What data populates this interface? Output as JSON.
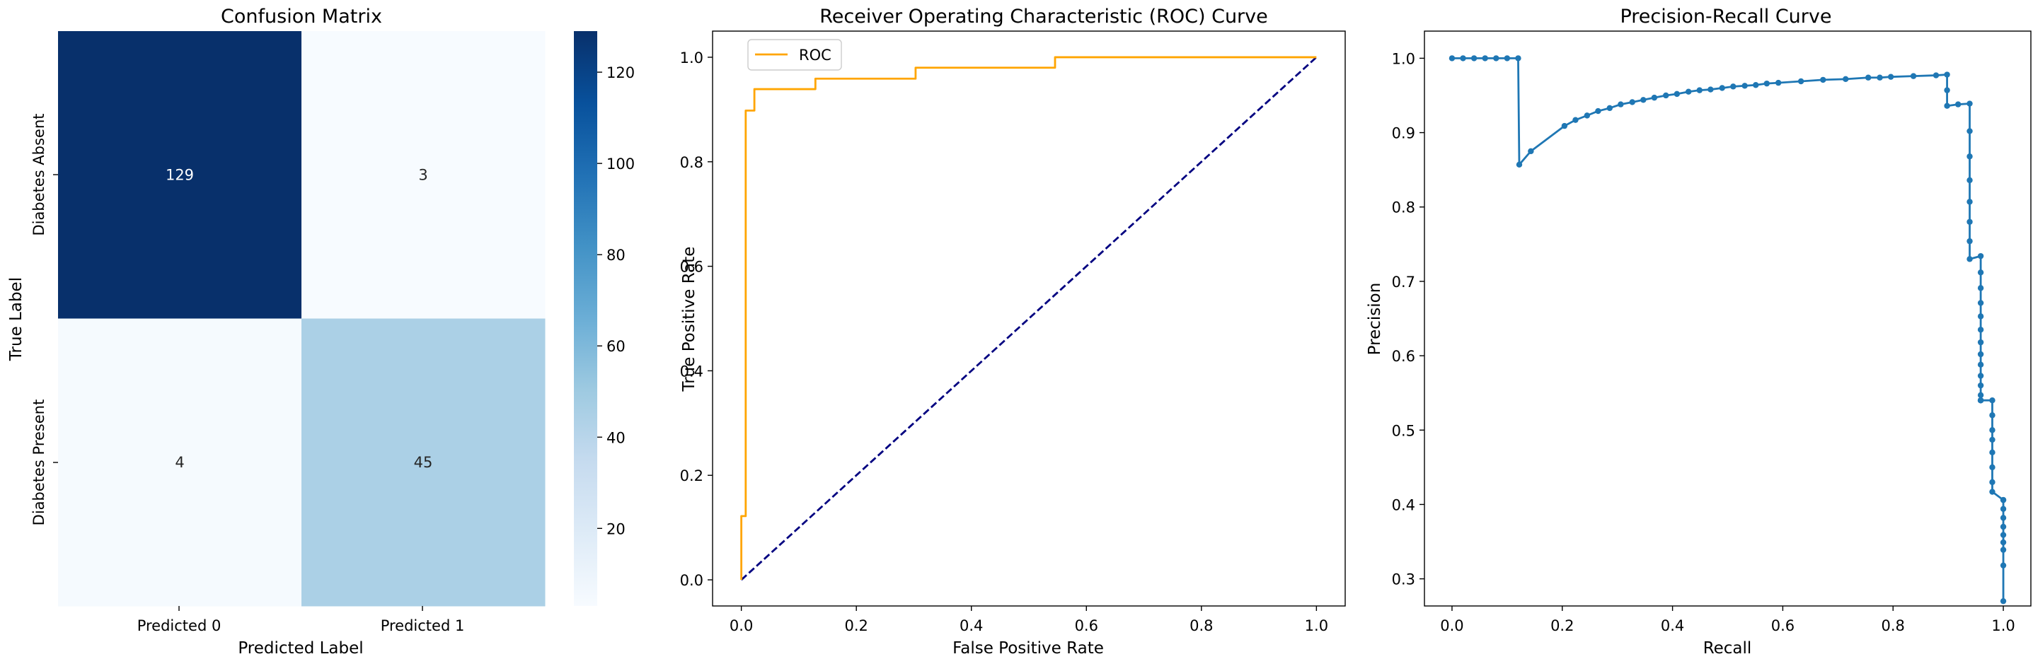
{
  "chart_data": [
    {
      "type": "heatmap",
      "title": "Confusion Matrix",
      "xlabel": "Predicted Label",
      "ylabel": "True Label",
      "x_categories": [
        "Predicted 0",
        "Predicted 1"
      ],
      "y_categories": [
        "Diabetes Absent",
        "Diabetes Present"
      ],
      "values": [
        [
          129,
          3
        ],
        [
          4,
          45
        ]
      ],
      "colormap": "Blues",
      "colorbar": {
        "min": 3,
        "max": 129,
        "ticks": [
          20,
          40,
          60,
          80,
          100,
          120
        ]
      }
    },
    {
      "type": "line",
      "title": "Receiver Operating Characteristic (ROC) Curve",
      "xlabel": "False Positive Rate",
      "ylabel": "True Positive Rate",
      "xlim": [
        -0.05,
        1.05
      ],
      "ylim": [
        -0.05,
        1.05
      ],
      "xticks": [
        "0.0",
        "0.2",
        "0.4",
        "0.6",
        "0.8",
        "1.0"
      ],
      "yticks": [
        "0.0",
        "0.2",
        "0.4",
        "0.6",
        "0.8",
        "1.0"
      ],
      "legend": {
        "position": "upper-left",
        "entries": [
          "ROC"
        ]
      },
      "series": [
        {
          "name": "ROC",
          "color": "#ffa500",
          "x": [
            0.0,
            0.0,
            0.0,
            0.0076,
            0.0076,
            0.0227,
            0.0227,
            0.1288,
            0.1288,
            0.303,
            0.303,
            0.5455,
            0.5455,
            1.0
          ],
          "y": [
            0.0,
            0.0,
            0.122,
            0.122,
            0.898,
            0.898,
            0.939,
            0.939,
            0.959,
            0.959,
            0.98,
            0.98,
            1.0,
            1.0
          ]
        },
        {
          "color": "#000080",
          "style": "dashed",
          "x": [
            0,
            1
          ],
          "y": [
            0,
            1
          ]
        }
      ]
    },
    {
      "type": "line",
      "title": "Precision-Recall Curve",
      "xlabel": "Recall",
      "ylabel": "Precision",
      "xlim": [
        -0.05,
        1.05
      ],
      "ylim": [
        0.2635,
        1.0365
      ],
      "xticks": [
        "0.0",
        "0.2",
        "0.4",
        "0.6",
        "0.8",
        "1.0"
      ],
      "yticks": [
        "0.3",
        "0.4",
        "0.5",
        "0.6",
        "0.7",
        "0.8",
        "0.9",
        "1.0"
      ],
      "series": [
        {
          "color": "#1f77b4",
          "marker": "circle",
          "x": [
            0.0,
            0.02,
            0.04,
            0.06,
            0.08,
            0.1,
            0.12,
            0.122,
            0.143,
            0.204,
            0.224,
            0.245,
            0.265,
            0.286,
            0.306,
            0.327,
            0.347,
            0.367,
            0.388,
            0.408,
            0.429,
            0.449,
            0.469,
            0.49,
            0.51,
            0.531,
            0.551,
            0.571,
            0.592,
            0.633,
            0.673,
            0.714,
            0.755,
            0.776,
            0.796,
            0.837,
            0.878,
            0.898,
            0.898,
            0.898,
            0.918,
            0.939,
            0.939,
            0.939,
            0.939,
            0.939,
            0.939,
            0.939,
            0.939,
            0.959,
            0.959,
            0.959,
            0.959,
            0.959,
            0.959,
            0.959,
            0.959,
            0.959,
            0.959,
            0.959,
            0.959,
            0.959,
            0.959,
            0.959,
            0.959,
            0.959,
            0.98,
            0.98,
            0.98,
            0.98,
            0.98,
            0.98,
            0.98,
            0.98,
            1.0,
            1.0,
            1.0,
            1.0,
            1.0,
            1.0,
            1.0,
            1.0,
            1.0,
            1.0
          ],
          "y": [
            1.0,
            1.0,
            1.0,
            1.0,
            1.0,
            1.0,
            1.0,
            0.857,
            0.875,
            0.909,
            0.917,
            0.923,
            0.929,
            0.933,
            0.938,
            0.941,
            0.944,
            0.947,
            0.95,
            0.952,
            0.955,
            0.957,
            0.958,
            0.96,
            0.962,
            0.963,
            0.964,
            0.966,
            0.967,
            0.969,
            0.971,
            0.972,
            0.974,
            0.974,
            0.975,
            0.976,
            0.977,
            0.978,
            0.957,
            0.936,
            0.938,
            0.939,
            0.902,
            0.868,
            0.836,
            0.807,
            0.78,
            0.754,
            0.73,
            0.734,
            0.712,
            0.691,
            0.671,
            0.653,
            0.635,
            0.618,
            0.602,
            0.588,
            0.573,
            0.56,
            0.547,
            0.54,
            0.54,
            0.54,
            0.54,
            0.54,
            0.54,
            0.52,
            0.5,
            0.487,
            0.47,
            0.45,
            0.43,
            0.417,
            0.406,
            0.406,
            0.394,
            0.382,
            0.37,
            0.359,
            0.349,
            0.339,
            0.318,
            0.27
          ]
        }
      ]
    }
  ]
}
